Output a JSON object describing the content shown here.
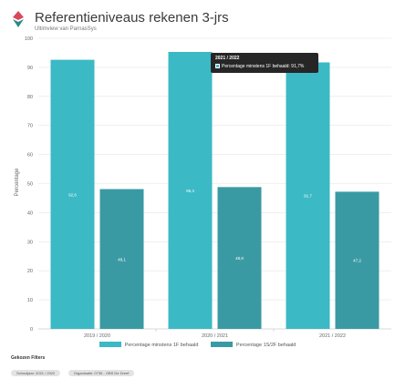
{
  "header": {
    "title": "Referentieniveaus rekenen 3-jrs",
    "subtitle": "Ultimview van ParnasSys",
    "logo_icon": "diamond-logo-icon"
  },
  "tooltip": {
    "title": "2021 / 2022",
    "text": "Percentage minstens 1F behaald: 91,7%"
  },
  "filters": {
    "title": "Gekozen Filters",
    "chips": [
      "Schooljaar: 2021 / 2022",
      "Organisatie: 0735 - OBS De Dreef"
    ]
  },
  "colors": {
    "series1": "#3bb9c5",
    "series2": "#3a9aa3",
    "grid": "#e6e6e6",
    "logo_red": "#d9475a",
    "logo_green": "#2c8a86"
  },
  "chart_data": {
    "type": "bar",
    "categories": [
      "2019 / 2020",
      "2020 / 2021",
      "2021 / 2022"
    ],
    "series": [
      {
        "name": "Percentage minstens 1F behaald",
        "values": [
          92.6,
          95.3,
          91.7
        ],
        "labels": [
          "92,6",
          "95,3",
          "91,7"
        ]
      },
      {
        "name": "Percentage 1S/2F behaald",
        "values": [
          48.1,
          48.8,
          47.2
        ],
        "labels": [
          "48,1",
          "48,8",
          "47,2"
        ]
      }
    ],
    "ylabel": "Percentage",
    "ylim": [
      0,
      100
    ],
    "yticks": [
      0,
      10,
      20,
      30,
      40,
      50,
      60,
      70,
      80,
      90,
      100
    ],
    "grid": true,
    "legend": "bottom"
  }
}
